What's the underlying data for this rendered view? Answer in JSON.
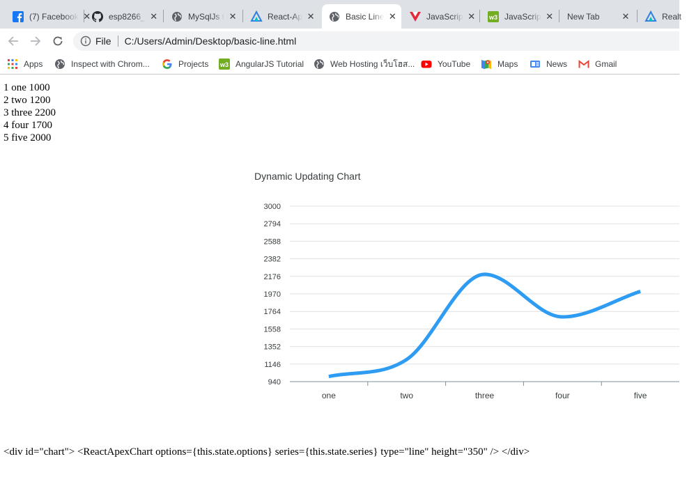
{
  "tabs": [
    {
      "title": "(7) Facebook",
      "favicon": "facebook-icon"
    },
    {
      "title": "esp8266_",
      "favicon": "github-icon"
    },
    {
      "title": "MySqlJs t",
      "favicon": "globe-icon"
    },
    {
      "title": "React-Ap",
      "favicon": "apex-icon"
    },
    {
      "title": "Basic Line",
      "favicon": "globe-icon",
      "active": true
    },
    {
      "title": "JavaScrip",
      "favicon": "vue-icon"
    },
    {
      "title": "JavaScrip",
      "favicon": "w3schools-icon"
    },
    {
      "title": "New Tab",
      "favicon": ""
    },
    {
      "title": "Realt",
      "favicon": "apex-icon"
    }
  ],
  "address": {
    "scheme_label": "File",
    "url": "C:/Users/Admin/Desktop/basic-line.html"
  },
  "bookmarks": [
    {
      "label": "Apps",
      "icon": "apps-grid-icon"
    },
    {
      "label": "Inspect with Chrom...",
      "icon": "globe-icon"
    },
    {
      "label": "Projects",
      "icon": "google-icon"
    },
    {
      "label": "AngularJS Tutorial",
      "icon": "w3schools-icon"
    },
    {
      "label": "Web Hosting เว็บโฮส...",
      "icon": "globe-icon"
    },
    {
      "label": "YouTube",
      "icon": "youtube-icon"
    },
    {
      "label": "Maps",
      "icon": "maps-icon"
    },
    {
      "label": "News",
      "icon": "news-icon"
    },
    {
      "label": "Gmail",
      "icon": "gmail-icon"
    }
  ],
  "list_items": [
    "1 one 1000",
    "2 two 1200",
    "3 three 2200",
    "4 four 1700",
    "5 five 2000"
  ],
  "chart_data": {
    "type": "line",
    "title": "Dynamic Updating Chart",
    "categories": [
      "one",
      "two",
      "three",
      "four",
      "five"
    ],
    "series": [
      {
        "values": [
          1000,
          1200,
          2200,
          1700,
          2000
        ],
        "color": "#2e9cf2"
      }
    ],
    "y_ticks": [
      "940",
      "1146",
      "1352",
      "1558",
      "1764",
      "1970",
      "2176",
      "2382",
      "2588",
      "2794",
      "3000"
    ],
    "ylim": [
      940,
      3000
    ],
    "grid": true,
    "curve": "smooth"
  },
  "code_text": "<div id=\"chart\"> <ReactApexChart options={this.state.options} series={this.state.series} type=\"line\" height=\"350\" /> </div>"
}
